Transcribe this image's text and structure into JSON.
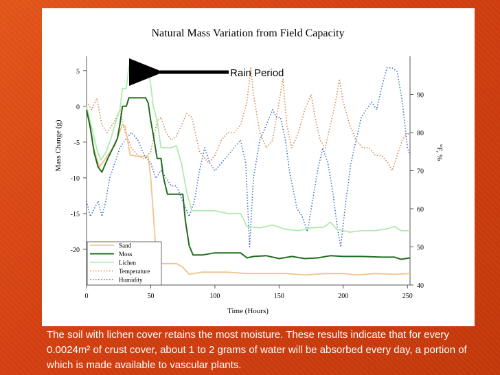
{
  "colors": {
    "sand": "#efc48c",
    "moss": "#1e6e1e",
    "lichen": "#aeeaae",
    "temperature": "#d5864a",
    "humidity": "#3c6fc2",
    "background": "#d9461a"
  },
  "chart_data": {
    "type": "line",
    "title": "Natural Mass Variation from Field Capacity",
    "xlabel": "Time (Hours)",
    "ylabel": "Mass Change (g)",
    "y2label": "°F, %",
    "xlim": [
      0,
      252
    ],
    "ylim": [
      -25,
      7
    ],
    "y2lim": [
      40,
      100
    ],
    "x_ticks": [
      0,
      50,
      100,
      150,
      200,
      250
    ],
    "y_ticks": [
      5,
      0,
      -5,
      -10,
      -15,
      -20
    ],
    "y2_ticks": [
      90,
      80,
      70,
      60,
      50,
      40
    ],
    "annotation": "Rain Period",
    "legend_position": "bottom-left",
    "series": [
      {
        "name": "Sand",
        "axis": "left",
        "style": "solid",
        "color_key": "sand",
        "points": [
          [
            0,
            0
          ],
          [
            5,
            -5.5
          ],
          [
            10,
            -8.5
          ],
          [
            14,
            -7.5
          ],
          [
            18,
            -6.5
          ],
          [
            22,
            -5.5
          ],
          [
            26,
            -3.5
          ],
          [
            28,
            -2.5
          ],
          [
            30,
            -2.8
          ],
          [
            34,
            -6.8
          ],
          [
            40,
            -7
          ],
          [
            48,
            -7
          ],
          [
            50,
            -10
          ],
          [
            52,
            -15
          ],
          [
            54,
            -20
          ],
          [
            56,
            -22
          ],
          [
            60,
            -22
          ],
          [
            65,
            -22
          ],
          [
            70,
            -22
          ],
          [
            75,
            -22.5
          ],
          [
            80,
            -23.5
          ],
          [
            90,
            -23.2
          ],
          [
            100,
            -23.2
          ],
          [
            110,
            -23.2
          ],
          [
            125,
            -23.4
          ],
          [
            140,
            -23.4
          ],
          [
            155,
            -23.4
          ],
          [
            170,
            -23.6
          ],
          [
            185,
            -23.4
          ],
          [
            200,
            -23.4
          ],
          [
            210,
            -23.6
          ],
          [
            225,
            -23.4
          ],
          [
            240,
            -23.5
          ],
          [
            252,
            -23.4
          ]
        ]
      },
      {
        "name": "Moss",
        "axis": "left",
        "style": "solid",
        "color_key": "moss",
        "points": [
          [
            0,
            -0.5
          ],
          [
            3,
            -3
          ],
          [
            6,
            -6.5
          ],
          [
            9,
            -8.5
          ],
          [
            12,
            -9.2
          ],
          [
            16,
            -7.5
          ],
          [
            20,
            -6
          ],
          [
            24,
            -4.5
          ],
          [
            26,
            -2.5
          ],
          [
            28,
            0
          ],
          [
            31,
            0
          ],
          [
            33,
            1.2
          ],
          [
            40,
            1.2
          ],
          [
            46,
            1.2
          ],
          [
            48,
            0.5
          ],
          [
            50,
            -2
          ],
          [
            52,
            -4
          ],
          [
            55,
            -7.3
          ],
          [
            58,
            -7.3
          ],
          [
            60,
            -10
          ],
          [
            63,
            -12.3
          ],
          [
            70,
            -12.3
          ],
          [
            75,
            -12.3
          ],
          [
            77,
            -16
          ],
          [
            80,
            -19.5
          ],
          [
            83,
            -20.8
          ],
          [
            90,
            -20.8
          ],
          [
            100,
            -20.5
          ],
          [
            120,
            -20.5
          ],
          [
            125,
            -21.2
          ],
          [
            130,
            -21
          ],
          [
            140,
            -20.9
          ],
          [
            150,
            -21.3
          ],
          [
            160,
            -21
          ],
          [
            170,
            -21.3
          ],
          [
            180,
            -21.2
          ],
          [
            190,
            -20.9
          ],
          [
            200,
            -21
          ],
          [
            215,
            -21
          ],
          [
            230,
            -21.1
          ],
          [
            240,
            -21.1
          ],
          [
            245,
            -21.4
          ],
          [
            252,
            -21.2
          ]
        ]
      },
      {
        "name": "Lichen",
        "axis": "left",
        "style": "solid",
        "color_key": "lichen",
        "points": [
          [
            0,
            0
          ],
          [
            4,
            -3
          ],
          [
            8,
            -6
          ],
          [
            11,
            -7.5
          ],
          [
            15,
            -6.5
          ],
          [
            19,
            -4.5
          ],
          [
            23,
            -2
          ],
          [
            26,
            -0.5
          ],
          [
            28,
            2.5
          ],
          [
            31,
            2.5
          ],
          [
            33,
            5.7
          ],
          [
            40,
            5.5
          ],
          [
            48,
            5
          ],
          [
            50,
            3
          ],
          [
            52,
            0
          ],
          [
            55,
            -2
          ],
          [
            58,
            -5.8
          ],
          [
            66,
            -5.8
          ],
          [
            70,
            -5.5
          ],
          [
            74,
            -8
          ],
          [
            78,
            -12
          ],
          [
            82,
            -14.6
          ],
          [
            90,
            -14.6
          ],
          [
            100,
            -14.6
          ],
          [
            110,
            -15
          ],
          [
            120,
            -15
          ],
          [
            125,
            -16.8
          ],
          [
            135,
            -17
          ],
          [
            145,
            -16.6
          ],
          [
            155,
            -17.2
          ],
          [
            165,
            -17.4
          ],
          [
            175,
            -17
          ],
          [
            185,
            -16.9
          ],
          [
            190,
            -16.2
          ],
          [
            195,
            -17.2
          ],
          [
            205,
            -17.6
          ],
          [
            215,
            -17.4
          ],
          [
            225,
            -17.4
          ],
          [
            235,
            -17.1
          ],
          [
            240,
            -16.8
          ],
          [
            245,
            -17.4
          ],
          [
            252,
            -17.4
          ]
        ]
      },
      {
        "name": "Temperature",
        "axis": "right",
        "style": "dotted",
        "color_key": "temperature",
        "points": [
          [
            0,
            88
          ],
          [
            4,
            86
          ],
          [
            8,
            89
          ],
          [
            12,
            82
          ],
          [
            16,
            80
          ],
          [
            22,
            83
          ],
          [
            26,
            86
          ],
          [
            30,
            80
          ],
          [
            35,
            76
          ],
          [
            40,
            74
          ],
          [
            45,
            73
          ],
          [
            50,
            75
          ],
          [
            55,
            83
          ],
          [
            58,
            84
          ],
          [
            62,
            80
          ],
          [
            66,
            78
          ],
          [
            70,
            79
          ],
          [
            74,
            82
          ],
          [
            78,
            85
          ],
          [
            82,
            84
          ],
          [
            88,
            75
          ],
          [
            95,
            72
          ],
          [
            100,
            74
          ],
          [
            105,
            78
          ],
          [
            110,
            80
          ],
          [
            115,
            80
          ],
          [
            120,
            82
          ],
          [
            125,
            88
          ],
          [
            128,
            97
          ],
          [
            130,
            90
          ],
          [
            135,
            80
          ],
          [
            140,
            76
          ],
          [
            145,
            78
          ],
          [
            150,
            88
          ],
          [
            153,
            94
          ],
          [
            156,
            82
          ],
          [
            160,
            76
          ],
          [
            165,
            80
          ],
          [
            170,
            86
          ],
          [
            175,
            90
          ],
          [
            178,
            84
          ],
          [
            182,
            78
          ],
          [
            186,
            76
          ],
          [
            190,
            82
          ],
          [
            194,
            88
          ],
          [
            197,
            94
          ],
          [
            200,
            88
          ],
          [
            205,
            82
          ],
          [
            210,
            78
          ],
          [
            215,
            76
          ],
          [
            220,
            76
          ],
          [
            225,
            74
          ],
          [
            230,
            74
          ],
          [
            235,
            72
          ],
          [
            238,
            70
          ],
          [
            242,
            74
          ],
          [
            246,
            78
          ],
          [
            250,
            80
          ],
          [
            252,
            79
          ]
        ]
      },
      {
        "name": "Humidity",
        "axis": "right",
        "style": "dotted",
        "color_key": "humidity",
        "points": [
          [
            0,
            62
          ],
          [
            3,
            58
          ],
          [
            6,
            60
          ],
          [
            9,
            62
          ],
          [
            12,
            58
          ],
          [
            15,
            62
          ],
          [
            18,
            68
          ],
          [
            22,
            72
          ],
          [
            26,
            76
          ],
          [
            30,
            78
          ],
          [
            35,
            80
          ],
          [
            40,
            78
          ],
          [
            45,
            74
          ],
          [
            50,
            72
          ],
          [
            54,
            68
          ],
          [
            58,
            70
          ],
          [
            62,
            68
          ],
          [
            66,
            66
          ],
          [
            70,
            66
          ],
          [
            75,
            62
          ],
          [
            80,
            58
          ],
          [
            84,
            62
          ],
          [
            88,
            70
          ],
          [
            92,
            76
          ],
          [
            96,
            72
          ],
          [
            100,
            70
          ],
          [
            105,
            72
          ],
          [
            110,
            74
          ],
          [
            115,
            76
          ],
          [
            120,
            78
          ],
          [
            124,
            72
          ],
          [
            127,
            50
          ],
          [
            130,
            68
          ],
          [
            135,
            78
          ],
          [
            140,
            82
          ],
          [
            145,
            86
          ],
          [
            148,
            84
          ],
          [
            151,
            84
          ],
          [
            155,
            78
          ],
          [
            158,
            70
          ],
          [
            161,
            65
          ],
          [
            164,
            60
          ],
          [
            168,
            58
          ],
          [
            172,
            54
          ],
          [
            176,
            62
          ],
          [
            180,
            70
          ],
          [
            184,
            76
          ],
          [
            188,
            72
          ],
          [
            192,
            64
          ],
          [
            195,
            56
          ],
          [
            198,
            50
          ],
          [
            202,
            62
          ],
          [
            206,
            72
          ],
          [
            210,
            78
          ],
          [
            214,
            84
          ],
          [
            218,
            86
          ],
          [
            222,
            88
          ],
          [
            226,
            86
          ],
          [
            230,
            92
          ],
          [
            234,
            97
          ],
          [
            238,
            97
          ],
          [
            242,
            96
          ],
          [
            246,
            88
          ],
          [
            250,
            76
          ],
          [
            252,
            74
          ]
        ]
      }
    ]
  },
  "caption": "The soil with lichen cover retains the most moisture. These results indicate that for every 0.0024m² of crust cover, about 1 to 2 grams of water will be absorbed every day, a portion of which is made available to vascular plants."
}
